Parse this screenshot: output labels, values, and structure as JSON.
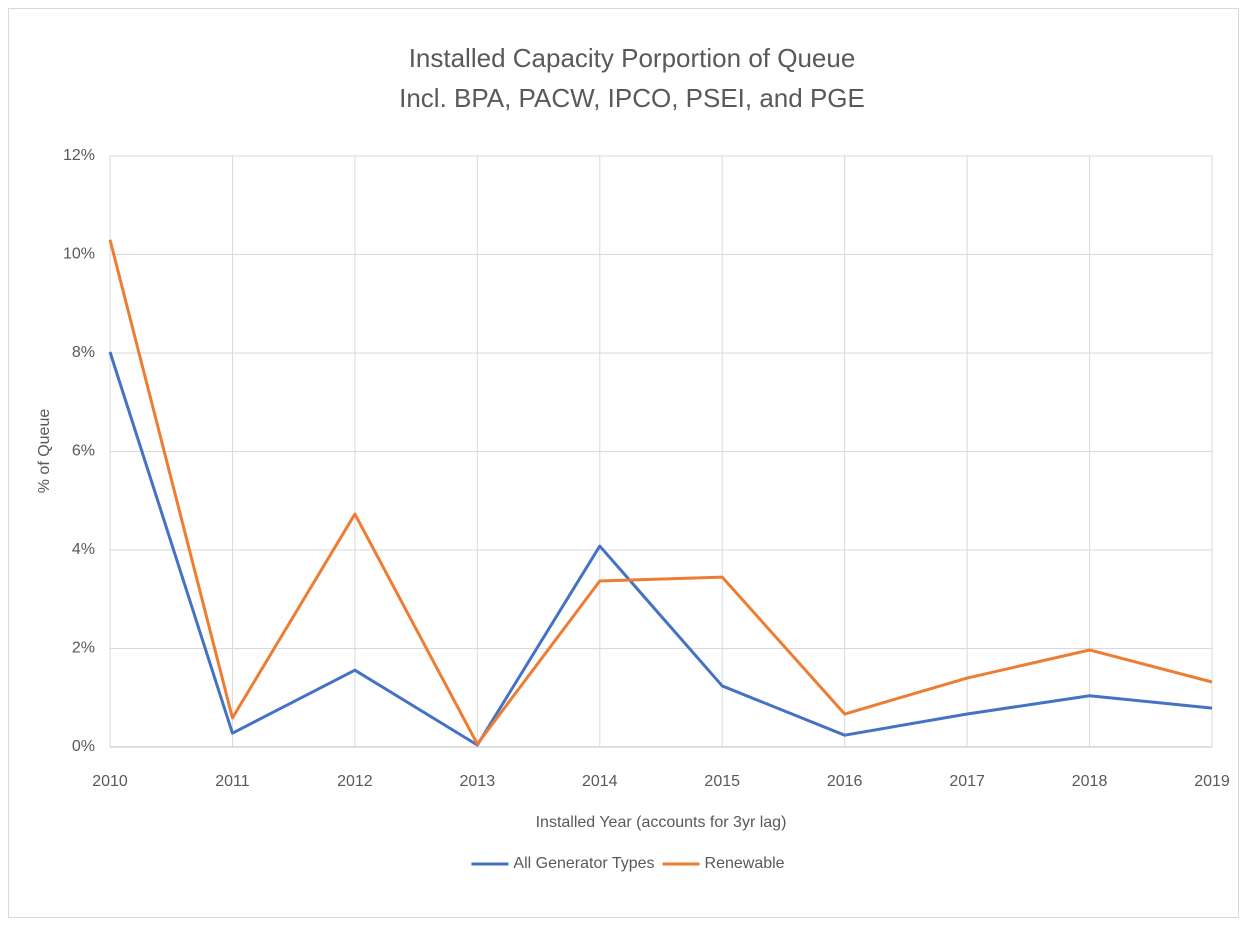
{
  "chart_data": {
    "type": "line",
    "title": "Installed Capacity Porportion of Queue",
    "subtitle": "Incl. BPA, PACW, IPCO, PSEI, and PGE",
    "xlabel": "Installed Year (accounts for 3yr lag)",
    "ylabel": "% of Queue",
    "x": [
      2010,
      2011,
      2012,
      2013,
      2014,
      2015,
      2016,
      2017,
      2018,
      2019
    ],
    "series": [
      {
        "name": "All Generator Types",
        "color": "#4472c4",
        "values": [
          8.02,
          0.28,
          1.56,
          0.04,
          4.08,
          1.24,
          0.24,
          0.67,
          1.04,
          0.79
        ]
      },
      {
        "name": "Renewable",
        "color": "#ed7d31",
        "values": [
          10.3,
          0.59,
          4.73,
          0.06,
          3.37,
          3.45,
          0.67,
          1.4,
          1.97,
          1.32
        ]
      }
    ],
    "xlim": [
      2010,
      2019
    ],
    "xticks": [
      2010,
      2011,
      2012,
      2013,
      2014,
      2015,
      2016,
      2017,
      2018,
      2019
    ],
    "ylim": [
      0,
      12
    ],
    "yticks": [
      {
        "value": 0,
        "label": "0%"
      },
      {
        "value": 2,
        "label": "2%"
      },
      {
        "value": 4,
        "label": "4%"
      },
      {
        "value": 6,
        "label": "6%"
      },
      {
        "value": 8,
        "label": "8%"
      },
      {
        "value": 10,
        "label": "10%"
      },
      {
        "value": 12,
        "label": "12%"
      }
    ],
    "grid": true,
    "legend": "bottom"
  }
}
